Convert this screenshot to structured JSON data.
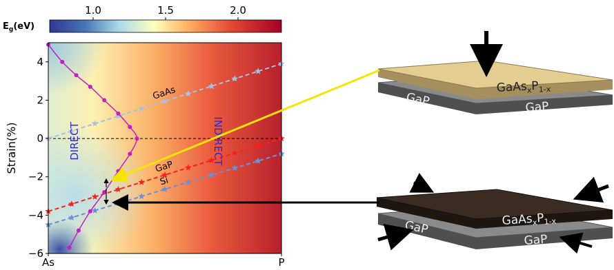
{
  "chart_data": {
    "type": "heatmap-line",
    "ylabel": "Strain(%)",
    "xlim": [
      0,
      1
    ],
    "xticks": [
      {
        "value": 0,
        "label": "As"
      },
      {
        "value": 1,
        "label": "P"
      }
    ],
    "ylim": [
      -6,
      5
    ],
    "yticks": [
      {
        "value": -6,
        "label": "−6"
      },
      {
        "value": -4,
        "label": "−4"
      },
      {
        "value": -2,
        "label": "−2"
      },
      0,
      2,
      4
    ],
    "colorbar": {
      "label": {
        "main": "E",
        "sub": "g",
        "unit": "(eV)"
      },
      "lim": [
        0.7,
        2.3
      ],
      "ticks": [
        {
          "value": 1,
          "label": "1.0"
        },
        1.5,
        {
          "value": 2,
          "label": "2.0"
        }
      ]
    },
    "reference_line": 0,
    "annotations": {
      "direct": "DIRECT",
      "indirect": "INDIRECT"
    },
    "series": [
      {
        "name": "GaAs",
        "color": "#a9c1e0",
        "x": [
          0,
          0.1,
          0.2,
          0.3,
          0.4,
          0.5,
          0.6,
          0.7,
          0.8,
          0.9,
          1
        ],
        "y": [
          0,
          0.39,
          0.78,
          1.17,
          1.56,
          1.95,
          2.34,
          2.73,
          3.12,
          3.51,
          3.9
        ]
      },
      {
        "name": "GaP",
        "color": "#ff1f1f",
        "x": [
          0,
          0.1,
          0.2,
          0.3,
          0.4,
          0.5,
          0.6,
          0.7,
          0.8,
          0.9,
          1
        ],
        "y": [
          -3.8,
          -3.42,
          -3.04,
          -2.66,
          -2.28,
          -1.9,
          -1.52,
          -1.14,
          -0.76,
          -0.38,
          0
        ]
      },
      {
        "name": "Si",
        "color": "#6a90d8",
        "x": [
          0,
          0.1,
          0.2,
          0.3,
          0.4,
          0.5,
          0.6,
          0.7,
          0.8,
          0.9,
          1
        ],
        "y": [
          -4.5,
          -4.13,
          -3.76,
          -3.39,
          -3.02,
          -2.65,
          -2.28,
          -1.91,
          -1.54,
          -1.17,
          -0.8
        ]
      }
    ],
    "boundary": {
      "color": "#c41fc4",
      "x": [
        0,
        0.06,
        0.12,
        0.18,
        0.24,
        0.3,
        0.35,
        0.38,
        0.35,
        0.3,
        0.24,
        0.18,
        0.13,
        0.09
      ],
      "y": [
        4.9,
        4,
        3.3,
        2.7,
        2,
        1.3,
        0.6,
        0,
        -0.8,
        -1.7,
        -2.8,
        -3.8,
        -4.8,
        -5.7
      ]
    },
    "schematic": {
      "film": {
        "base": "GaAs",
        "sub1": "x",
        "mid": "P",
        "sub2": "1-x"
      },
      "substrate": "GaP"
    }
  }
}
